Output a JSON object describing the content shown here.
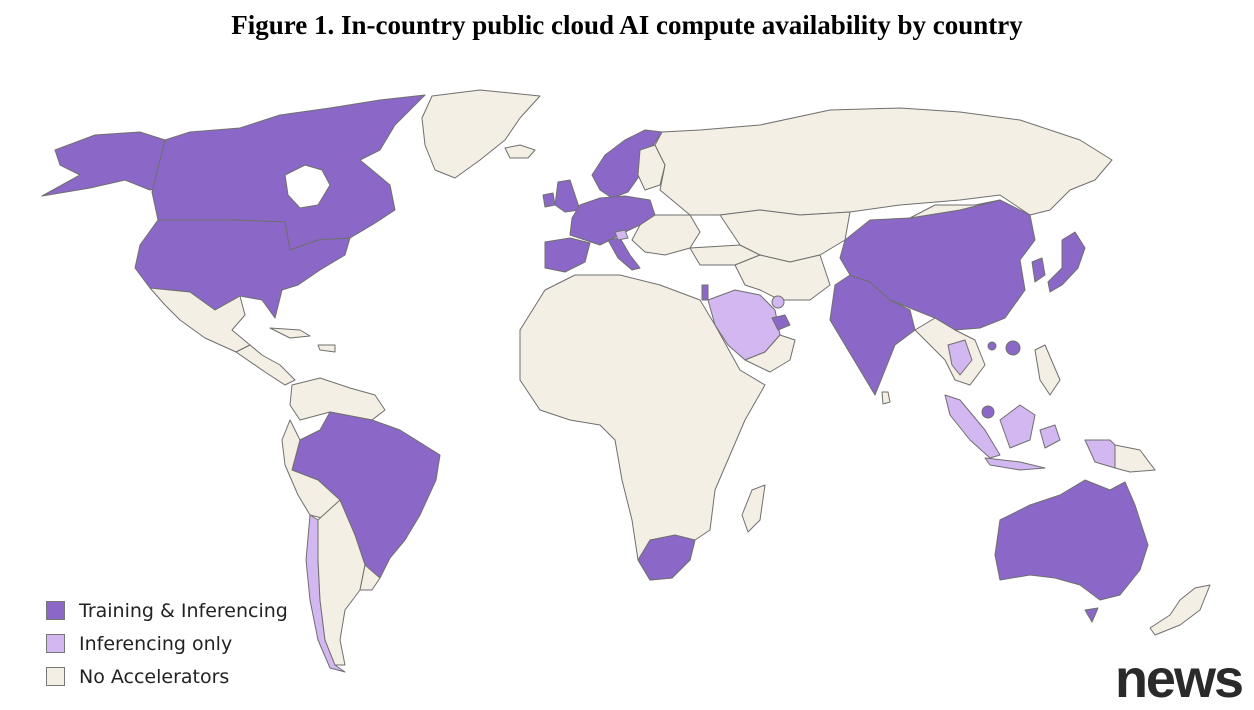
{
  "figure": {
    "title": "Figure 1. In-country public cloud AI compute availability by country"
  },
  "colors": {
    "training_inferencing": "#8b68c8",
    "inferencing_only": "#d2b7f0",
    "no_accelerators": "#f4efe4",
    "border": "#6f6f6f"
  },
  "legend": [
    {
      "label": "Training & Inferencing",
      "color": "#8b68c8"
    },
    {
      "label": "Inferencing only",
      "color": "#d2b7f0"
    },
    {
      "label": "No Accelerators",
      "color": "#f4efe4"
    }
  ],
  "watermark": "news"
}
